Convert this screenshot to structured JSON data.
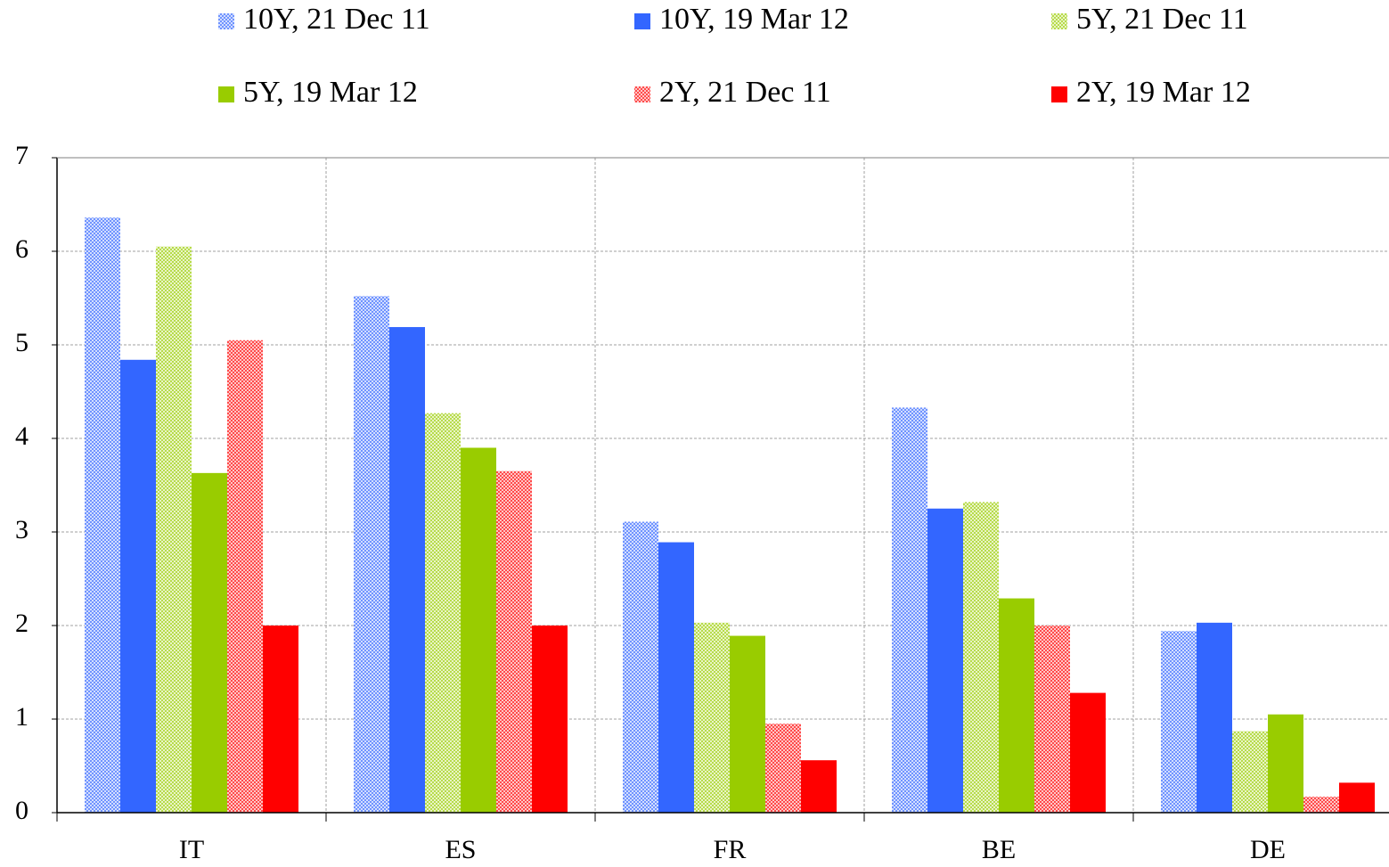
{
  "chart_data": {
    "type": "bar",
    "categories": [
      "IT",
      "ES",
      "FR",
      "BE",
      "DE"
    ],
    "series": [
      {
        "name": "10Y, 21 Dec 11",
        "color": "#3366ff",
        "hatched": true,
        "values": [
          6.36,
          5.52,
          3.11,
          4.33,
          1.94
        ]
      },
      {
        "name": "10Y, 19 Mar 12",
        "color": "#3366ff",
        "hatched": false,
        "values": [
          4.84,
          5.19,
          2.89,
          3.25,
          2.03
        ]
      },
      {
        "name": "5Y, 21 Dec 11",
        "color": "#99cc00",
        "hatched": true,
        "values": [
          6.05,
          4.27,
          2.03,
          3.32,
          0.87
        ]
      },
      {
        "name": "5Y, 19 Mar 12",
        "color": "#99cc00",
        "hatched": false,
        "values": [
          3.63,
          3.9,
          1.89,
          2.29,
          1.05
        ]
      },
      {
        "name": "2Y, 21 Dec 11",
        "color": "#ff0000",
        "hatched": true,
        "values": [
          5.05,
          3.65,
          0.95,
          2.0,
          0.17
        ]
      },
      {
        "name": "2Y, 19 Mar 12",
        "color": "#ff0000",
        "hatched": false,
        "values": [
          2.0,
          2.0,
          0.56,
          1.28,
          0.32
        ]
      }
    ],
    "ylim": [
      0,
      7
    ],
    "yticks": [
      0,
      1,
      2,
      3,
      4,
      5,
      6,
      7
    ],
    "grid": true,
    "legend": "top"
  }
}
